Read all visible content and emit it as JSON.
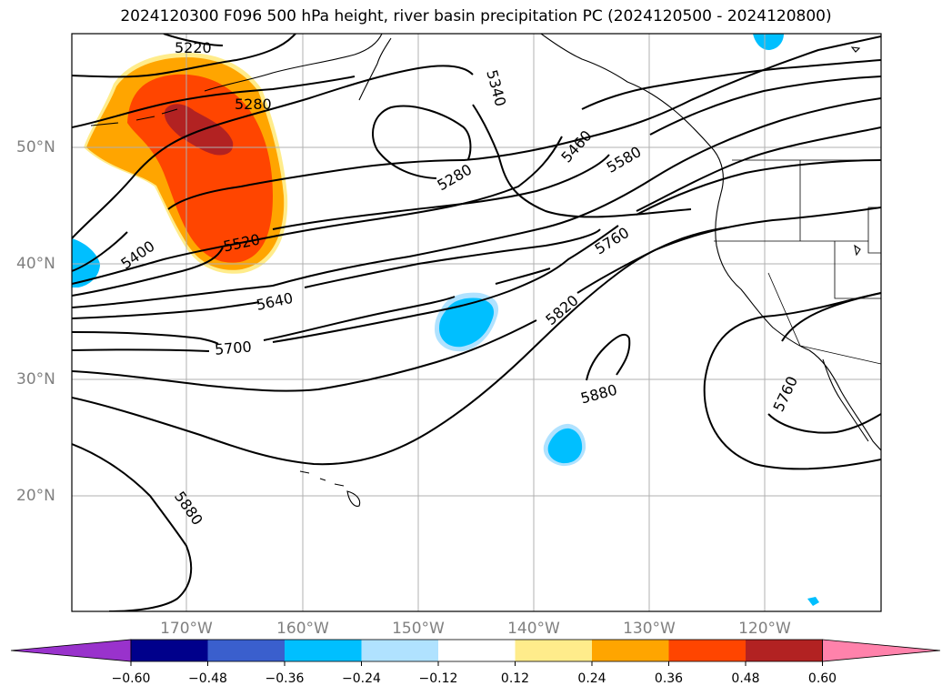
{
  "title": "2024120300 F096 500 hPa height, river basin precipitation PC (2024120500 - 2024120800)",
  "map": {
    "lat_labels": [
      "50°N",
      "40°N",
      "30°N",
      "20°N"
    ],
    "lon_labels": [
      "170°W",
      "160°W",
      "150°W",
      "140°W",
      "130°W",
      "120°W"
    ],
    "contour_labels": [
      "5220",
      "5280",
      "5340",
      "5280",
      "5400",
      "5520",
      "5460",
      "5580",
      "5760",
      "5640",
      "5700",
      "5820",
      "5880",
      "5760",
      "5880"
    ]
  },
  "colorbar": {
    "ticks": [
      "−0.60",
      "−0.48",
      "−0.36",
      "−0.24",
      "−0.12",
      "0.12",
      "0.24",
      "0.36",
      "0.48",
      "0.60"
    ],
    "colors": [
      "#9932cc",
      "#00008b",
      "#3a5fcd",
      "#00bfff",
      "#b0e2ff",
      "#ffffff",
      "#ffec8b",
      "#ffa500",
      "#ff4500",
      "#b22222",
      "#ff82ab"
    ]
  }
}
